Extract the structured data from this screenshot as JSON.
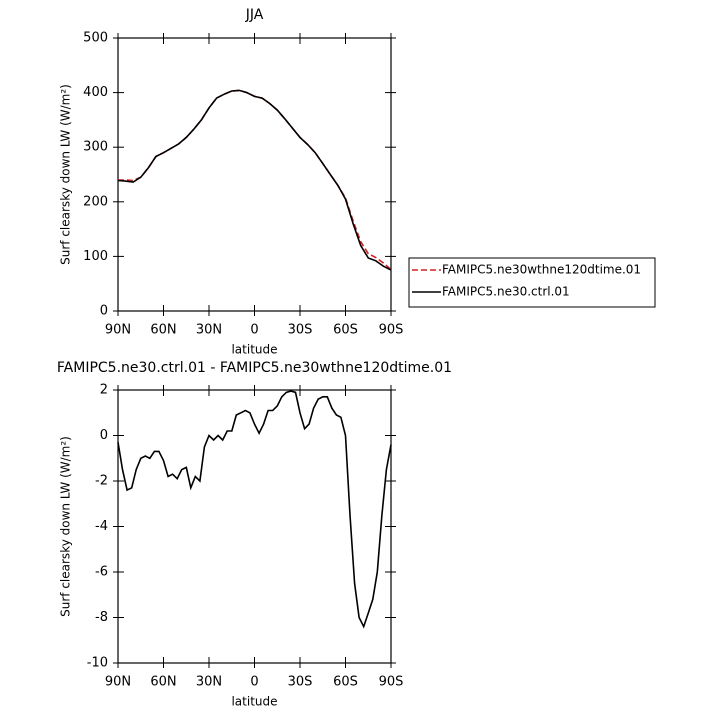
{
  "chart_data": [
    {
      "type": "line",
      "title": "JJA",
      "x_label": "latitude",
      "y_label": "Surf clearsky down LW (W/m²)",
      "x": [
        90,
        85,
        80,
        75,
        70,
        65,
        60,
        55,
        50,
        45,
        40,
        35,
        30,
        25,
        20,
        15,
        10,
        5,
        0,
        -5,
        -10,
        -15,
        -20,
        -25,
        -30,
        -35,
        -40,
        -45,
        -50,
        -55,
        -60,
        -65,
        -70,
        -75,
        -80,
        -85,
        -90
      ],
      "series": [
        {
          "name": "FAMIPC5.ne30wthne120dtime.01",
          "color": "#d42020",
          "linestyle": "dashed",
          "values": [
            240,
            240,
            239,
            245,
            262,
            283,
            290,
            298,
            306,
            318,
            333,
            350,
            372,
            390,
            397,
            403,
            404,
            400,
            393,
            390,
            380,
            368,
            352,
            335,
            318,
            305,
            290,
            270,
            250,
            230,
            207,
            165,
            127,
            105,
            98,
            88,
            76
          ]
        },
        {
          "name": "FAMIPC5.ne30.ctrl.01",
          "color": "#000000",
          "linestyle": "solid",
          "values": [
            239,
            238,
            236,
            245,
            262,
            283,
            290,
            298,
            306,
            318,
            333,
            350,
            372,
            390,
            397,
            403,
            404,
            400,
            393,
            390,
            380,
            368,
            352,
            335,
            318,
            305,
            290,
            270,
            250,
            230,
            205,
            160,
            120,
            97,
            92,
            82,
            75
          ]
        }
      ],
      "xlim": [
        90,
        -90
      ],
      "xticks": [
        {
          "value": 90,
          "label": "90N"
        },
        {
          "value": 60,
          "label": "60N"
        },
        {
          "value": 30,
          "label": "30N"
        },
        0,
        {
          "value": -30,
          "label": "30S"
        },
        {
          "value": -60,
          "label": "60S"
        },
        {
          "value": -90,
          "label": "90S"
        }
      ],
      "ylim": [
        0,
        500
      ],
      "yticks": [
        0,
        100,
        200,
        300,
        400,
        500
      ],
      "legend": "outside-right"
    },
    {
      "type": "line",
      "title": "FAMIPC5.ne30.ctrl.01 - FAMIPC5.ne30wthne120dtime.01",
      "x_label": "latitude",
      "y_label": "Surf clearsky down LW (W/m²)",
      "x": [
        90,
        87,
        84,
        81,
        78,
        75,
        72,
        69,
        66,
        63,
        60,
        57,
        54,
        51,
        48,
        45,
        42,
        39,
        36,
        33,
        30,
        27,
        24,
        21,
        18,
        15,
        12,
        9,
        6,
        3,
        0,
        -3,
        -6,
        -9,
        -12,
        -15,
        -18,
        -21,
        -24,
        -27,
        -30,
        -33,
        -36,
        -39,
        -42,
        -45,
        -48,
        -51,
        -54,
        -57,
        -60,
        -63,
        -66,
        -69,
        -72,
        -75,
        -78,
        -81,
        -84,
        -87,
        -90
      ],
      "series": [
        {
          "color": "#000000",
          "linestyle": "solid",
          "values": [
            -0.3,
            -1.5,
            -2.4,
            -2.3,
            -1.5,
            -1.0,
            -0.9,
            -1.0,
            -0.7,
            -0.7,
            -1.1,
            -1.8,
            -1.7,
            -1.9,
            -1.5,
            -1.4,
            -2.3,
            -1.8,
            -2.0,
            -0.5,
            0.0,
            -0.2,
            0.0,
            -0.2,
            0.2,
            0.2,
            0.9,
            1.0,
            1.1,
            1.0,
            0.5,
            0.1,
            0.5,
            1.1,
            1.1,
            1.3,
            1.7,
            1.9,
            1.95,
            1.9,
            1.0,
            0.3,
            0.5,
            1.2,
            1.6,
            1.7,
            1.7,
            1.2,
            0.9,
            0.8,
            0.0,
            -3.5,
            -6.5,
            -8.0,
            -8.4,
            -7.8,
            -7.2,
            -6.0,
            -3.5,
            -1.5,
            -0.4
          ]
        }
      ],
      "xlim": [
        90,
        -90
      ],
      "xticks": [
        {
          "value": 90,
          "label": "90N"
        },
        {
          "value": 60,
          "label": "60N"
        },
        {
          "value": 30,
          "label": "30N"
        },
        0,
        {
          "value": -30,
          "label": "30S"
        },
        {
          "value": -60,
          "label": "60S"
        },
        {
          "value": -90,
          "label": "90S"
        }
      ],
      "ylim": [
        -10,
        2
      ],
      "yticks": [
        -10,
        -8,
        -6,
        -4,
        -2,
        0,
        2
      ]
    }
  ]
}
